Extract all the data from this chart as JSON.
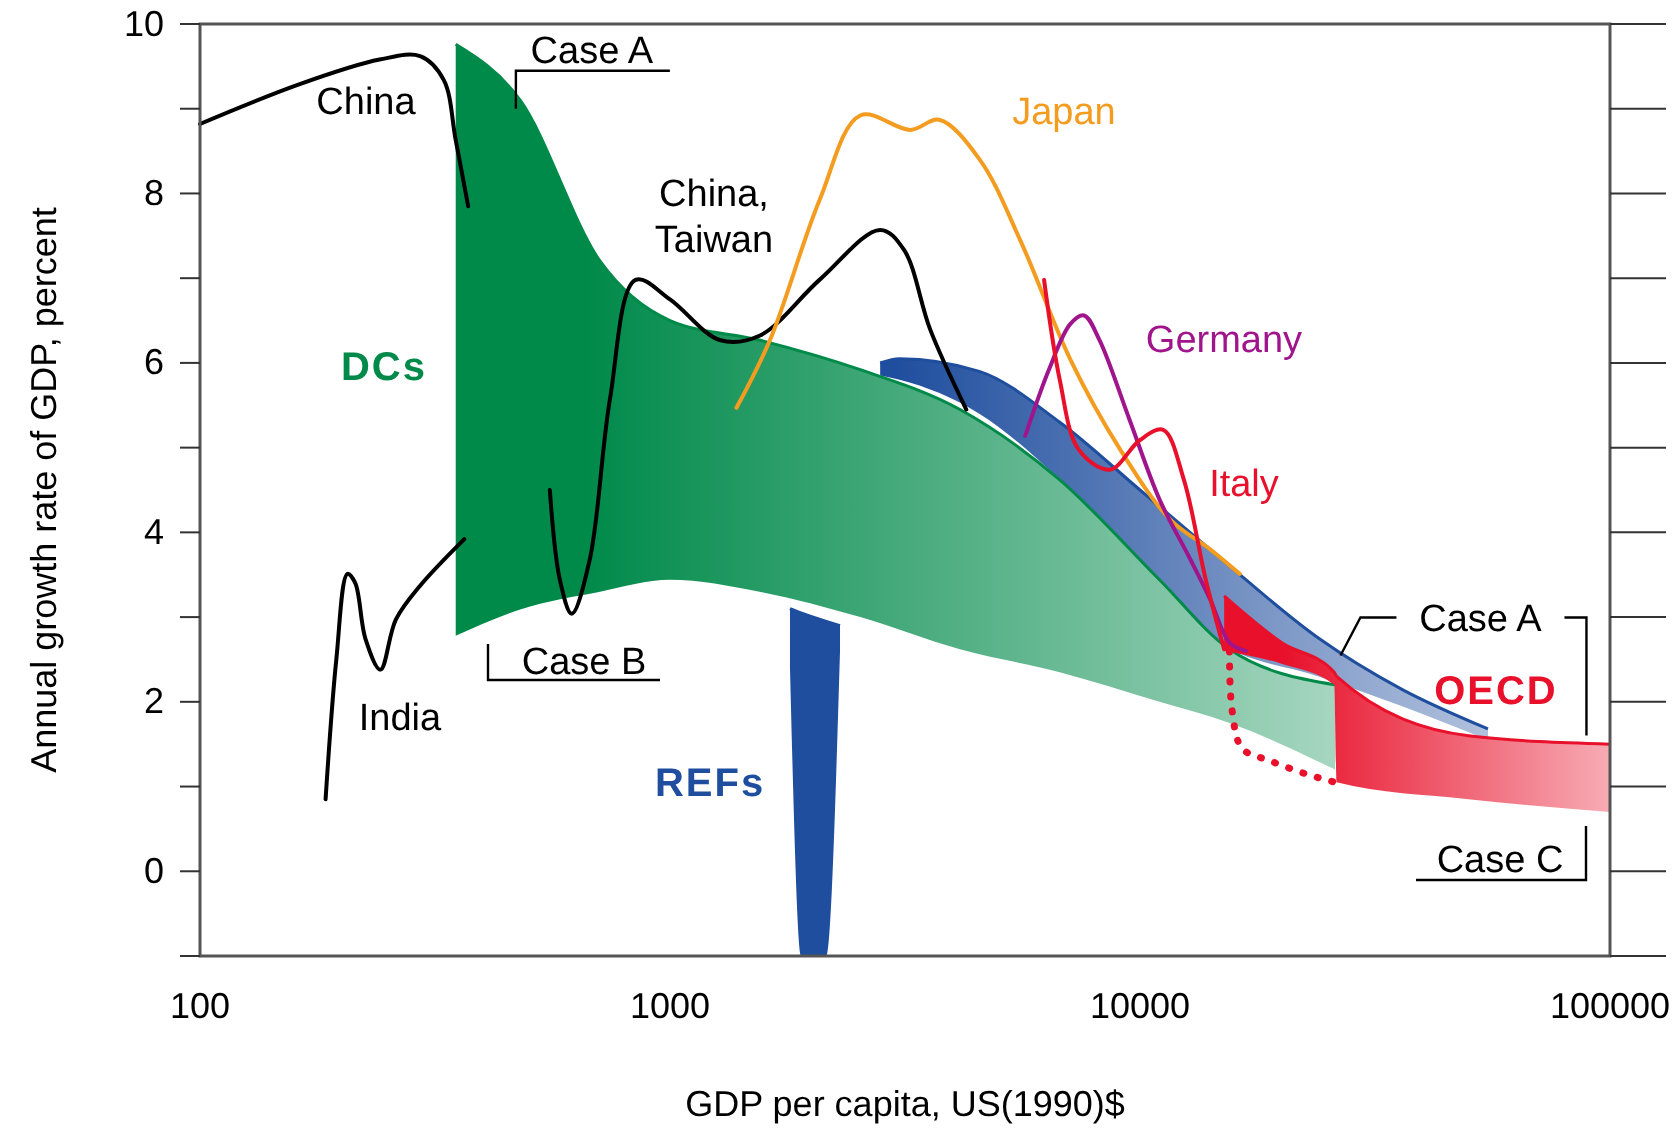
{
  "chart_data": {
    "type": "line",
    "xlabel": "GDP per capita, US(1990)$",
    "ylabel": "Annual growth rate of GDP, percent",
    "log": "x",
    "xlim": [
      100,
      100000
    ],
    "xticks": [
      100,
      1000,
      10000,
      100000
    ],
    "ylim": [
      -1,
      10
    ],
    "yticks": [
      {
        "value": -1,
        "label": null
      },
      0,
      {
        "value": 1,
        "label": null
      },
      2,
      {
        "value": 3,
        "label": null
      },
      4,
      {
        "value": 5,
        "label": null
      },
      6,
      {
        "value": 7,
        "label": null
      },
      8,
      {
        "value": 9,
        "label": null
      },
      10
    ],
    "grid": false,
    "series": [
      {
        "name": "REFs",
        "color": "#1f4e9e",
        "x": [
          1800,
          1900,
          2150,
          2300,
          2540,
          2800,
          3080,
          4550,
          6750,
          10000,
          14800,
          24000,
          36000,
          55000
        ],
        "values": [
          3.1,
          3.05,
          2.95,
          2.9,
          null,
          6.0,
          6.05,
          5.9,
          5.3,
          4.5,
          3.7,
          2.75,
          2.15,
          1.68
        ],
        "lower": [
          2.4,
          -1,
          -1,
          2.6,
          null,
          5.85,
          5.8,
          5.4,
          4.62,
          3.6,
          2.7,
          2.3,
          1.95,
          1.55
        ],
        "upper": [
          3.1,
          3.05,
          2.95,
          2.9,
          null,
          6.0,
          6.05,
          5.9,
          5.3,
          4.5,
          3.7,
          2.75,
          2.15,
          1.68
        ]
      },
      {
        "name": "DCs",
        "color": "#008a4a",
        "x": [
          350,
          480,
          710,
          1000,
          1550,
          2540,
          4140,
          6750,
          11000,
          15500,
          26000
        ],
        "values": [
          9.76,
          9.1,
          7.2,
          6.5,
          6.27,
          5.92,
          5.45,
          4.62,
          3.44,
          2.62,
          2.2
        ],
        "lower": [
          2.78,
          3.09,
          3.3,
          3.44,
          3.3,
          3.0,
          2.62,
          2.35,
          2.0,
          1.75,
          1.2
        ],
        "upper": [
          9.76,
          9.1,
          7.2,
          6.5,
          6.27,
          5.92,
          5.45,
          4.62,
          3.44,
          2.62,
          2.2
        ]
      },
      {
        "name": "OECD",
        "color": "#e8102a",
        "x": [
          15100,
          20000,
          25900,
          26200,
          50000,
          100000
        ],
        "values": [
          3.25,
          2.7,
          2.35,
          2.3,
          1.6,
          1.5
        ],
        "lower": [
          2.6,
          2.45,
          2.2,
          1.05,
          0.85,
          0.7
        ],
        "upper": [
          3.25,
          2.7,
          2.35,
          2.3,
          1.6,
          1.5
        ]
      },
      {
        "color": "#e8102a",
        "line_style": "dotted",
        "x": [
          15500,
          15700,
          16500,
          19000,
          22500,
          26000
        ],
        "values": [
          2.6,
          1.9,
          1.45,
          1.3,
          1.15,
          1.05
        ]
      },
      {
        "name": "China",
        "color": "#000000",
        "x": [
          100,
          163,
          241,
          294,
          330,
          350,
          372
        ],
        "values": [
          8.82,
          9.29,
          9.58,
          9.62,
          9.34,
          8.63,
          7.85
        ]
      },
      {
        "name": "India",
        "color": "#000000",
        "x": [
          185,
          195,
          206,
          214,
          225,
          242,
          261,
          294,
          365
        ],
        "values": [
          0.85,
          2.5,
          3.51,
          3.4,
          2.74,
          2.38,
          2.97,
          3.37,
          3.92
        ]
      },
      {
        "name": "China, Taiwan",
        "color": "#000000",
        "x": [
          555,
          583,
          618,
          675,
          745,
          845,
          1000,
          1276,
          1550,
          2080,
          2800,
          3150,
          3580,
          4270
        ],
        "values": [
          4.5,
          3.44,
          3.04,
          3.68,
          5.57,
          6.98,
          6.75,
          6.27,
          6.32,
          6.98,
          7.57,
          7.33,
          6.39,
          5.45
        ]
      },
      {
        "name": "Japan",
        "color": "#f39c1f",
        "x": [
          1385,
          1632,
          2080,
          2540,
          3250,
          3740,
          4560,
          5560,
          7110,
          9070,
          11600,
          14100,
          16300
        ],
        "values": [
          5.47,
          6.27,
          7.92,
          8.92,
          8.75,
          8.87,
          8.4,
          7.45,
          6.04,
          4.98,
          4.15,
          3.8,
          3.51
        ]
      },
      {
        "name": "Germany",
        "color": "#a0148c",
        "x": [
          5700,
          6400,
          7110,
          7600,
          8200,
          9500,
          11000,
          12800,
          14100,
          15500,
          16800
        ],
        "values": [
          5.14,
          5.92,
          6.46,
          6.56,
          6.27,
          5.33,
          4.39,
          3.68,
          3.21,
          2.7,
          2.6
        ]
      },
      {
        "name": "Italy",
        "color": "#e8102a",
        "x": [
          6250,
          6750,
          7400,
          8620,
          10000,
          11200,
          12400,
          13800,
          15100
        ],
        "values": [
          6.98,
          5.8,
          4.98,
          4.74,
          5.09,
          5.21,
          4.62,
          3.44,
          2.62
        ]
      }
    ],
    "annotations": [
      {
        "text": "Case A",
        "x": 470,
        "y": 9.0
      },
      "Case B",
      {
        "text": "Case A",
        "x": 26700,
        "y": 2.5
      },
      "Case C"
    ]
  }
}
